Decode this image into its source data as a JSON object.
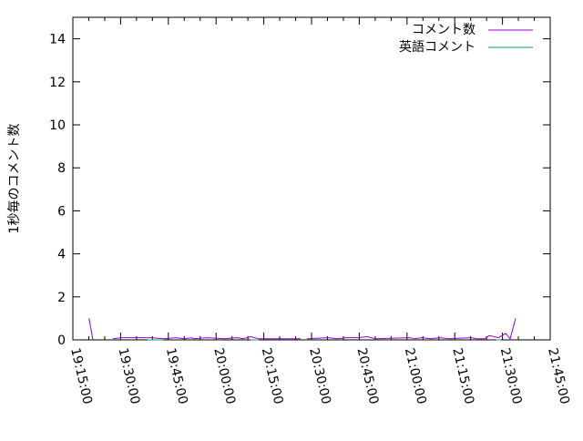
{
  "chart_data": {
    "type": "line",
    "title": "",
    "xlabel": "",
    "ylabel": "1秒毎のコメント数",
    "xlim": [
      "19:15:00",
      "21:45:00"
    ],
    "ylim": [
      0,
      15
    ],
    "x_tick_labels": [
      "19:15:00",
      "19:30:00",
      "19:45:00",
      "20:00:00",
      "20:15:00",
      "20:30:00",
      "20:45:00",
      "21:00:00",
      "21:15:00",
      "21:30:00",
      "21:45:00"
    ],
    "y_tick_labels": [
      "0",
      "2",
      "4",
      "6",
      "8",
      "10",
      "12",
      "14"
    ],
    "grid": false,
    "legend_position": "top-right",
    "series": [
      {
        "name": "コメント数",
        "color": "#9400d3",
        "points": [
          [
            "19:20:04",
            1.0
          ],
          [
            "19:21:18",
            0
          ],
          null,
          [
            "19:23:35",
            0
          ],
          null,
          [
            "19:27:36",
            0.05
          ],
          [
            "19:30:10",
            0.1
          ],
          [
            "19:39:37",
            0.1
          ],
          [
            "19:43:38",
            0.05
          ],
          [
            "19:47:21",
            0.1
          ],
          [
            "19:50:13",
            0.05
          ],
          [
            "19:52:13",
            0.1
          ],
          [
            "19:53:04",
            0.05
          ],
          [
            "19:57:05",
            0.1
          ],
          [
            "20:02:49",
            0.05
          ],
          [
            "20:06:32",
            0.1
          ],
          [
            "20:08:32",
            0.05
          ],
          [
            "20:10:50",
            0.15
          ],
          [
            "20:13:24",
            0.05
          ],
          [
            "20:26:34",
            0.05
          ],
          null,
          [
            "20:28:35",
            0.05
          ],
          [
            "20:35:10",
            0.1
          ],
          [
            "20:38:02",
            0.05
          ],
          [
            "20:40:54",
            0.1
          ],
          [
            "20:44:37",
            0.1
          ],
          [
            "20:47:29",
            0.15
          ],
          [
            "20:50:04",
            0.05
          ],
          [
            "21:00:56",
            0.1
          ],
          [
            "21:02:22",
            0.05
          ],
          [
            "21:04:39",
            0.1
          ],
          [
            "21:07:31",
            0.05
          ],
          [
            "21:10:23",
            0.1
          ],
          [
            "21:13:15",
            0.05
          ],
          [
            "21:20:07",
            0.1
          ],
          [
            "21:21:50",
            0.05
          ],
          [
            "21:24:25",
            0.05
          ],
          [
            "21:25:51",
            0.2
          ],
          [
            "21:28:43",
            0.1
          ],
          [
            "21:31:00",
            0.3
          ],
          [
            "21:32:25",
            0.05
          ],
          [
            "21:34:08",
            1.0
          ]
        ]
      },
      {
        "name": "英語コメント",
        "color": "#009e73",
        "points": [
          [
            "19:38:30",
            0
          ],
          [
            "19:43:38",
            0
          ],
          null,
          [
            "20:10:50",
            0
          ],
          [
            "20:13:24",
            0
          ],
          null,
          [
            "21:28:00",
            0
          ],
          [
            "21:29:30",
            0
          ]
        ]
      }
    ]
  }
}
